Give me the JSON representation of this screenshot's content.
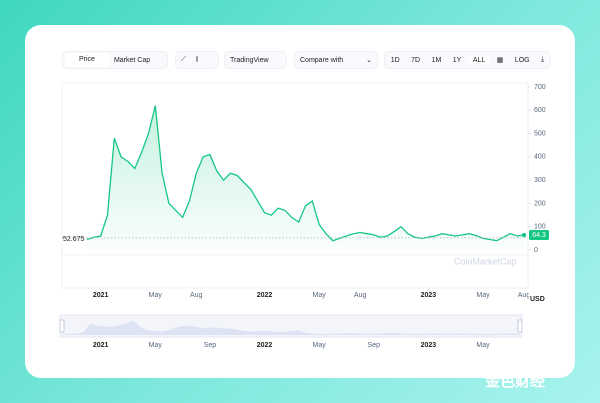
{
  "toolbar": {
    "price": "Price",
    "market_cap": "Market Cap",
    "tradingview": "TradingView",
    "compare": "Compare with",
    "ranges": [
      "1D",
      "7D",
      "1M",
      "1Y",
      "ALL"
    ],
    "log": "LOG"
  },
  "chart_data": {
    "type": "line",
    "color": "#16c784",
    "categories": [
      null,
      null,
      "2021",
      null,
      null,
      null,
      null,
      null,
      null,
      null,
      "May",
      null,
      null,
      null,
      null,
      null,
      "Aug",
      null,
      null,
      null,
      null,
      null,
      null,
      null,
      null,
      null,
      "2022",
      null,
      null,
      null,
      null,
      null,
      null,
      null,
      "May",
      null,
      null,
      null,
      null,
      null,
      "Aug",
      null,
      null,
      null,
      null,
      null,
      null,
      null,
      null,
      null,
      "2023",
      null,
      null,
      null,
      null,
      null,
      null,
      null,
      "May",
      null,
      null,
      null,
      null,
      null,
      "Aug"
    ],
    "values": [
      45,
      55,
      60,
      150,
      480,
      400,
      380,
      350,
      420,
      500,
      620,
      330,
      200,
      170,
      140,
      210,
      330,
      400,
      410,
      340,
      300,
      330,
      320,
      290,
      260,
      210,
      160,
      150,
      180,
      170,
      140,
      120,
      190,
      210,
      110,
      70,
      40,
      50,
      60,
      70,
      75,
      70,
      65,
      55,
      60,
      80,
      100,
      70,
      55,
      50,
      55,
      60,
      70,
      65,
      60,
      65,
      70,
      62,
      50,
      45,
      40,
      55,
      70,
      60,
      64.3
    ],
    "ylim": [
      0,
      700
    ],
    "yticks": [
      0,
      100,
      200,
      300,
      400,
      500,
      600,
      700
    ],
    "reference_line": 52.675,
    "currency": "USD"
  },
  "navigator": {
    "labels": [
      "2021",
      "May",
      "Sep",
      "2022",
      "May",
      "Sep",
      "2023",
      "May"
    ]
  },
  "watermark": "CoinMarketCap",
  "logo": "金色财经"
}
